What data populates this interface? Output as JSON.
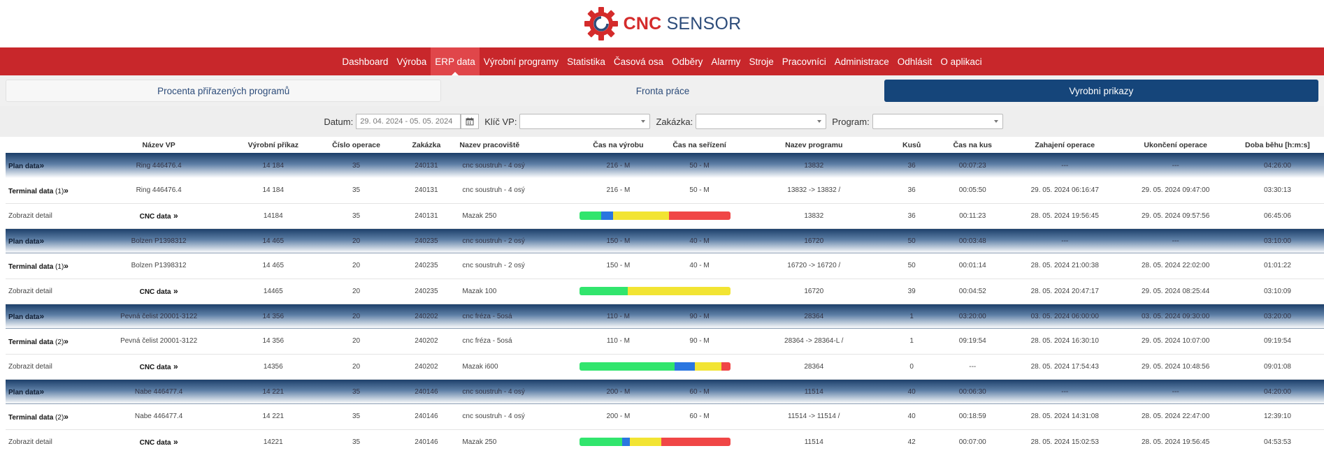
{
  "logo": {
    "brand_red": "CNC",
    "brand_blue": "SENSOR",
    "icon": "gear-icon"
  },
  "colors": {
    "nav_bg": "#c8272b",
    "active_tab": "#15457a",
    "bar_green": "#31e56d",
    "bar_blue": "#2a76e0",
    "bar_yellow": "#f2e433",
    "bar_red": "#f04646"
  },
  "nav": {
    "items": [
      "Dashboard",
      "Výroba",
      "ERP data",
      "Výrobní programy",
      "Statistika",
      "Časová osa",
      "Odběry",
      "Alarmy",
      "Stroje",
      "Pracovníci",
      "Administrace",
      "Odhlásit",
      "O aplikaci"
    ],
    "active": "ERP data"
  },
  "subtabs": {
    "t1": "Procenta přiřazených programů",
    "t2": "Fronta práce",
    "t3": "Vyrobni prikazy"
  },
  "filters": {
    "datum_label": "Datum:",
    "datum_value": "29. 04. 2024 - 05. 05. 2024",
    "klic_label": "Klíč VP:",
    "zakazka_label": "Zakázka:",
    "program_label": "Program:"
  },
  "table": {
    "headers": [
      "",
      "Název VP",
      "Výrobní příkaz",
      "Číslo operace",
      "Zakázka",
      "Nazev pracoviště",
      "Čas na výrobu",
      "Čas na seřízení",
      "Nazev programu",
      "Kusů",
      "Čas na kus",
      "Zahajení operace",
      "Ukončení operace",
      "Doba běhu [h:m:s]"
    ],
    "rows": [
      {
        "type": "plan",
        "label": "Plan data",
        "nazev": "Ring 446476.4",
        "prikaz": "14 184",
        "operace": "35",
        "zakazka": "240131",
        "pracoviste": "cnc soustruh - 4 osý",
        "vyroba": "216 - M",
        "serizeni": "50 - M",
        "program": "13832",
        "kusu": "36",
        "kus": "00:07:23",
        "zahajeni": "---",
        "ukonceni": "---",
        "doba": "04:26:00"
      },
      {
        "type": "terminal",
        "label": "Terminal data",
        "count": "(1)",
        "nazev": "Ring 446476.4",
        "prikaz": "14 184",
        "operace": "35",
        "zakazka": "240131",
        "pracoviste": "cnc soustruh - 4 osý",
        "vyroba": "216 - M",
        "serizeni": "50 - M",
        "program": "13832 -> 13832 /",
        "kusu": "36",
        "kus": "00:05:50",
        "zahajeni": "29. 05. 2024 06:16:47",
        "ukonceni": "29. 05. 2024 09:47:00",
        "doba": "03:30:13"
      },
      {
        "type": "cnc",
        "label": "Zobrazit detail",
        "cnc": "CNC data",
        "prikaz": "14184",
        "operace": "35",
        "zakazka": "240131",
        "pracoviste": "Mazak 250",
        "bar": [
          [
            "green",
            14
          ],
          [
            "blue",
            8
          ],
          [
            "yellow",
            37
          ],
          [
            "red",
            41
          ]
        ],
        "program": "13832",
        "kusu": "36",
        "kus": "00:11:23",
        "zahajeni": "28. 05. 2024 19:56:45",
        "ukonceni": "29. 05. 2024 09:57:56",
        "doba": "06:45:06"
      },
      {
        "type": "plan",
        "label": "Plan data",
        "nazev": "Bolzen P1398312",
        "prikaz": "14 465",
        "operace": "20",
        "zakazka": "240235",
        "pracoviste": "cnc soustruh - 2 osý",
        "vyroba": "150 - M",
        "serizeni": "40 - M",
        "program": "16720",
        "kusu": "50",
        "kus": "00:03:48",
        "zahajeni": "---",
        "ukonceni": "---",
        "doba": "03:10:00"
      },
      {
        "type": "terminal",
        "label": "Terminal data",
        "count": "(1)",
        "nazev": "Bolzen P1398312",
        "prikaz": "14 465",
        "operace": "20",
        "zakazka": "240235",
        "pracoviste": "cnc soustruh - 2 osý",
        "vyroba": "150 - M",
        "serizeni": "40 - M",
        "program": "16720 -> 16720 /",
        "kusu": "50",
        "kus": "00:01:14",
        "zahajeni": "28. 05. 2024 21:00:38",
        "ukonceni": "28. 05. 2024 22:02:00",
        "doba": "01:01:22"
      },
      {
        "type": "cnc",
        "label": "Zobrazit detail",
        "cnc": "CNC data",
        "prikaz": "14465",
        "operace": "20",
        "zakazka": "240235",
        "pracoviste": "Mazak 100",
        "bar": [
          [
            "green",
            32
          ],
          [
            "yellow",
            68
          ]
        ],
        "program": "16720",
        "kusu": "39",
        "kus": "00:04:52",
        "zahajeni": "28. 05. 2024 20:47:17",
        "ukonceni": "29. 05. 2024 08:25:44",
        "doba": "03:10:09"
      },
      {
        "type": "plan",
        "label": "Plan data",
        "nazev": "Pevná čelist 20001-3122",
        "prikaz": "14 356",
        "operace": "20",
        "zakazka": "240202",
        "pracoviste": "cnc fréza - 5osá",
        "vyroba": "110 - M",
        "serizeni": "90 - M",
        "program": "28364",
        "kusu": "1",
        "kus": "03:20:00",
        "zahajeni": "03. 05. 2024 06:00:00",
        "ukonceni": "03. 05. 2024 09:30:00",
        "doba": "03:20:00"
      },
      {
        "type": "terminal",
        "label": "Terminal data",
        "count": "(2)",
        "nazev": "Pevná čelist 20001-3122",
        "prikaz": "14 356",
        "operace": "20",
        "zakazka": "240202",
        "pracoviste": "cnc fréza - 5osá",
        "vyroba": "110 - M",
        "serizeni": "90 - M",
        "program": "28364 -> 28364-L /",
        "kusu": "1",
        "kus": "09:19:54",
        "zahajeni": "28. 05. 2024 16:30:10",
        "ukonceni": "29. 05. 2024 10:07:00",
        "doba": "09:19:54"
      },
      {
        "type": "cnc",
        "label": "Zobrazit detail",
        "cnc": "CNC data",
        "prikaz": "14356",
        "operace": "20",
        "zakazka": "240202",
        "pracoviste": "Mazak i600",
        "bar": [
          [
            "green",
            63
          ],
          [
            "blue",
            13
          ],
          [
            "yellow",
            18
          ],
          [
            "red",
            6
          ]
        ],
        "program": "28364",
        "kusu": "0",
        "kus": "---",
        "zahajeni": "28. 05. 2024 17:54:43",
        "ukonceni": "29. 05. 2024 10:48:56",
        "doba": "09:01:08"
      },
      {
        "type": "plan",
        "label": "Plan data",
        "nazev": "Nabe 446477.4",
        "prikaz": "14 221",
        "operace": "35",
        "zakazka": "240146",
        "pracoviste": "cnc soustruh - 4 osý",
        "vyroba": "200 - M",
        "serizeni": "60 - M",
        "program": "11514",
        "kusu": "40",
        "kus": "00:06:30",
        "zahajeni": "---",
        "ukonceni": "---",
        "doba": "04:20:00"
      },
      {
        "type": "terminal",
        "label": "Terminal data",
        "count": "(2)",
        "nazev": "Nabe 446477.4",
        "prikaz": "14 221",
        "operace": "35",
        "zakazka": "240146",
        "pracoviste": "cnc soustruh - 4 osý",
        "vyroba": "200 - M",
        "serizeni": "60 - M",
        "program": "11514 -> 11514 /",
        "kusu": "40",
        "kus": "00:18:59",
        "zahajeni": "28. 05. 2024 14:31:08",
        "ukonceni": "28. 05. 2024 22:47:00",
        "doba": "12:39:10"
      },
      {
        "type": "cnc",
        "label": "Zobrazit detail",
        "cnc": "CNC data",
        "prikaz": "14221",
        "operace": "35",
        "zakazka": "240146",
        "pracoviste": "Mazak 250",
        "bar": [
          [
            "green",
            28
          ],
          [
            "blue",
            5
          ],
          [
            "yellow",
            21
          ],
          [
            "red",
            46
          ]
        ],
        "program": "11514",
        "kusu": "42",
        "kus": "00:07:00",
        "zahajeni": "28. 05. 2024 15:02:53",
        "ukonceni": "28. 05. 2024 19:56:45",
        "doba": "04:53:53"
      }
    ]
  }
}
